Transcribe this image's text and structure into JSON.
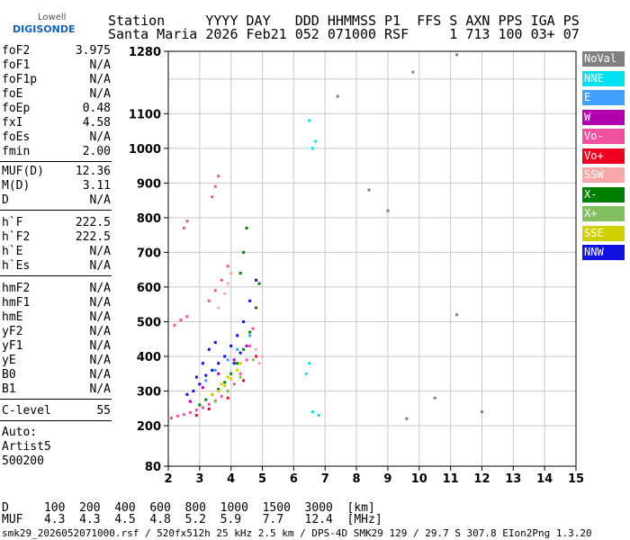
{
  "logo": {
    "line1": "Lowell",
    "line2": "DIGISONDE"
  },
  "header": {
    "line1": "Station     YYYY DAY   DDD HHMMSS P1  FFS S AXN PPS IGA PS",
    "line2": "Santa Maria 2026 Feb21 052 071000 RSF     1 713 100 03+ 07"
  },
  "params_group1": [
    {
      "name": "foF2",
      "value": "3.975"
    },
    {
      "name": "foF1",
      "value": "N/A"
    },
    {
      "name": "foF1p",
      "value": "N/A"
    },
    {
      "name": "foE",
      "value": "N/A"
    },
    {
      "name": "foEp",
      "value": "0.48"
    },
    {
      "name": "fxI",
      "value": "4.58"
    },
    {
      "name": "foEs",
      "value": "N/A"
    },
    {
      "name": "fmin",
      "value": "2.00"
    }
  ],
  "params_group2": [
    {
      "name": "MUF(D)",
      "value": "12.36"
    },
    {
      "name": "M(D)",
      "value": "3.11"
    },
    {
      "name": "D",
      "value": "N/A"
    }
  ],
  "params_group3": [
    {
      "name": "h`F",
      "value": "222.5"
    },
    {
      "name": "h`F2",
      "value": "222.5"
    },
    {
      "name": "h`E",
      "value": "N/A"
    },
    {
      "name": "h`Es",
      "value": "N/A"
    }
  ],
  "params_group4": [
    {
      "name": "hmF2",
      "value": "N/A"
    },
    {
      "name": "hmF1",
      "value": "N/A"
    },
    {
      "name": "hmE",
      "value": "N/A"
    },
    {
      "name": "yF2",
      "value": "N/A"
    },
    {
      "name": "yF1",
      "value": "N/A"
    },
    {
      "name": "yE",
      "value": "N/A"
    },
    {
      "name": "B0",
      "value": "N/A"
    },
    {
      "name": "B1",
      "value": "N/A"
    }
  ],
  "params_group5": [
    {
      "name": "C-level",
      "value": "55"
    }
  ],
  "autoscale": {
    "line1": "Auto:",
    "line2": "Artist5",
    "line3": "500200"
  },
  "legend": [
    {
      "label": "NoVal",
      "color": "#808080"
    },
    {
      "label": "NNE",
      "color": "#00e0f0"
    },
    {
      "label": "E",
      "color": "#40a0ff"
    },
    {
      "label": "W",
      "color": "#b000b0"
    },
    {
      "label": "Vo-",
      "color": "#f050a0"
    },
    {
      "label": "Vo+",
      "color": "#f00020"
    },
    {
      "label": "SSW",
      "color": "#f8a8a8"
    },
    {
      "label": "X-",
      "color": "#008000"
    },
    {
      "label": "X+",
      "color": "#80c060"
    },
    {
      "label": "SSE",
      "color": "#d0d000"
    },
    {
      "label": "NNW",
      "color": "#1010e0"
    }
  ],
  "bottom": {
    "line1": "D     100  200  400  600  800  1000  1500  3000  [km]",
    "line2": "MUF   4.3  4.3  4.5  4.8  5.2  5.9   7.7   12.4  [MHz]",
    "line3": "smk29_2026052071000.rsf / 520fx512h 25 kHz 2.5 km / DPS-4D SMK29 129 / 29.7 S 307.8 EIon2Png 1.3.20"
  },
  "chart_data": {
    "type": "scatter",
    "xlabel": "",
    "ylabel": "",
    "xlim": [
      2,
      15
    ],
    "xticks": [
      2,
      3,
      4,
      5,
      6,
      7,
      8,
      9,
      10,
      11,
      12,
      13,
      14,
      15
    ],
    "yticks": [
      80,
      200,
      300,
      400,
      500,
      600,
      700,
      800,
      900,
      1000,
      1100,
      1280
    ],
    "ylim": [
      80,
      1280
    ],
    "grid": true,
    "series": [
      {
        "name": "Vo-",
        "color": "#f050a0",
        "points": [
          [
            2.1,
            222
          ],
          [
            2.3,
            228
          ],
          [
            2.5,
            232
          ],
          [
            2.7,
            238
          ],
          [
            2.9,
            245
          ],
          [
            3.1,
            252
          ],
          [
            3.3,
            262
          ],
          [
            3.5,
            272
          ],
          [
            3.7,
            285
          ],
          [
            3.9,
            300
          ],
          [
            4.1,
            320
          ],
          [
            4.3,
            350
          ],
          [
            4.5,
            390
          ],
          [
            4.6,
            430
          ],
          [
            4.7,
            480
          ],
          [
            2.2,
            490
          ],
          [
            2.4,
            505
          ],
          [
            2.6,
            515
          ],
          [
            3.3,
            560
          ],
          [
            3.5,
            590
          ],
          [
            3.7,
            620
          ],
          [
            3.9,
            660
          ],
          [
            3.4,
            860
          ],
          [
            3.5,
            890
          ],
          [
            3.6,
            920
          ],
          [
            2.5,
            770
          ],
          [
            2.6,
            790
          ]
        ]
      },
      {
        "name": "NNW",
        "color": "#1010e0",
        "points": [
          [
            2.8,
            300
          ],
          [
            3.0,
            320
          ],
          [
            3.2,
            345
          ],
          [
            3.4,
            360
          ],
          [
            3.6,
            380
          ],
          [
            3.8,
            400
          ],
          [
            4.0,
            430
          ],
          [
            4.2,
            460
          ],
          [
            4.4,
            500
          ],
          [
            4.6,
            560
          ],
          [
            4.8,
            620
          ],
          [
            3.3,
            420
          ],
          [
            3.5,
            440
          ],
          [
            4.1,
            380
          ],
          [
            4.3,
            410
          ],
          [
            2.6,
            290
          ],
          [
            2.9,
            340
          ],
          [
            3.1,
            380
          ]
        ]
      },
      {
        "name": "X-",
        "color": "#008000",
        "points": [
          [
            3.0,
            260
          ],
          [
            3.2,
            275
          ],
          [
            3.4,
            290
          ],
          [
            3.6,
            305
          ],
          [
            3.8,
            325
          ],
          [
            4.0,
            350
          ],
          [
            4.2,
            380
          ],
          [
            4.4,
            420
          ],
          [
            4.6,
            470
          ],
          [
            4.8,
            540
          ],
          [
            4.9,
            610
          ],
          [
            4.3,
            640
          ],
          [
            4.4,
            700
          ],
          [
            4.5,
            770
          ]
        ]
      },
      {
        "name": "SSE",
        "color": "#d0d000",
        "points": [
          [
            3.4,
            290
          ],
          [
            3.6,
            300
          ],
          [
            3.8,
            315
          ],
          [
            4.0,
            335
          ],
          [
            4.2,
            360
          ],
          [
            4.3,
            380
          ],
          [
            3.7,
            320
          ],
          [
            3.9,
            340
          ]
        ]
      },
      {
        "name": "SSW",
        "color": "#f8a8a8",
        "points": [
          [
            3.6,
            540
          ],
          [
            3.8,
            580
          ],
          [
            3.9,
            610
          ],
          [
            4.0,
            640
          ],
          [
            4.9,
            380
          ],
          [
            5.0,
            400
          ],
          [
            4.8,
            420
          ]
        ]
      },
      {
        "name": "NNE",
        "color": "#00e0f0",
        "points": [
          [
            6.4,
            350
          ],
          [
            6.5,
            380
          ],
          [
            6.6,
            1000
          ],
          [
            6.7,
            1020
          ],
          [
            6.5,
            1080
          ],
          [
            6.6,
            240
          ],
          [
            6.8,
            230
          ]
        ]
      },
      {
        "name": "E",
        "color": "#40a0ff",
        "points": [
          [
            3.2,
            330
          ],
          [
            3.5,
            360
          ],
          [
            3.9,
            390
          ],
          [
            4.2,
            420
          ],
          [
            4.6,
            460
          ]
        ]
      },
      {
        "name": "Vo+",
        "color": "#f00020",
        "points": [
          [
            2.9,
            230
          ],
          [
            3.3,
            248
          ],
          [
            3.9,
            280
          ],
          [
            4.4,
            330
          ],
          [
            4.8,
            400
          ]
        ]
      },
      {
        "name": "W",
        "color": "#b000b0",
        "points": [
          [
            2.7,
            270
          ],
          [
            3.1,
            310
          ],
          [
            3.6,
            350
          ],
          [
            4.1,
            390
          ],
          [
            4.5,
            430
          ]
        ]
      },
      {
        "name": "X+",
        "color": "#80c060",
        "points": [
          [
            3.5,
            270
          ],
          [
            3.9,
            300
          ],
          [
            4.3,
            340
          ],
          [
            4.7,
            390
          ]
        ]
      },
      {
        "name": "NoVal",
        "color": "#808080",
        "points": [
          [
            7.4,
            1150
          ],
          [
            8.4,
            880
          ],
          [
            9.0,
            820
          ],
          [
            9.8,
            1220
          ],
          [
            11.2,
            1270
          ],
          [
            10.5,
            280
          ],
          [
            12.0,
            240
          ],
          [
            11.2,
            520
          ],
          [
            9.6,
            220
          ]
        ]
      }
    ]
  }
}
